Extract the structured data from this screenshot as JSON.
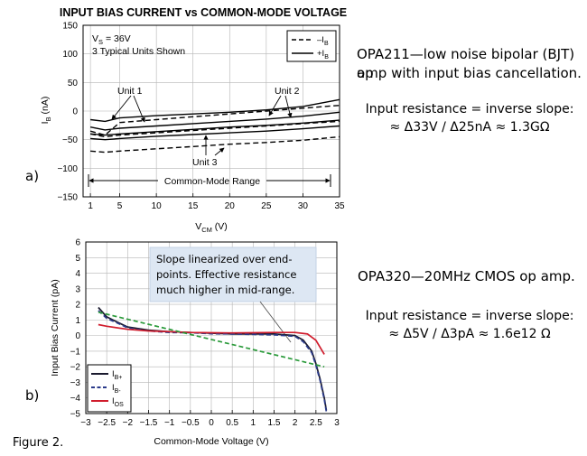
{
  "labels": {
    "a": "a)",
    "b": "b)",
    "figure": "Figure 2."
  },
  "opa211": {
    "line1": "OPA211—low noise bipolar (BJT) op",
    "line2": "amp with input bias cancellation.",
    "r1": "Input resistance = inverse slope:",
    "r2": "≈ Δ33V / Δ25nA ≈ 1.3GΩ"
  },
  "opa320": {
    "line1": "OPA320—20MHz CMOS op amp.",
    "r1": "Input resistance = inverse slope:",
    "r2": "≈ Δ5V / Δ3pA ≈ 1.6e12 Ω"
  },
  "callout": {
    "line1": "Slope linearized over end-",
    "line2": "points. Effective resistance",
    "line3": "much higher in mid-range."
  },
  "chart_data": [
    {
      "type": "line",
      "title": "INPUT BIAS CURRENT vs COMMON-MODE VOLTAGE",
      "xlabel_main": "V",
      "xlabel_sub": "CM",
      "xlabel_unit": " (V)",
      "ylabel_main": "I",
      "ylabel_sub": "B",
      "ylabel_unit": " (nA)",
      "xlim": [
        0,
        35
      ],
      "ylim": [
        -150,
        150
      ],
      "xticks": [
        1,
        5,
        10,
        15,
        20,
        25,
        30,
        35
      ],
      "yticks": [
        150,
        100,
        50,
        0,
        -50,
        -100,
        -150
      ],
      "grid": true,
      "conditions": [
        "V = 36V",
        "3 Typical Units Shown"
      ],
      "conditions_sub": "S",
      "legend": {
        "position": "top-right",
        "items": [
          {
            "main": "–I",
            "sub": "B",
            "dash": true
          },
          {
            "main": "+I",
            "sub": "B",
            "dash": false
          }
        ]
      },
      "annotations": [
        "Unit 1",
        "Unit 2",
        "Unit 3",
        "Common-Mode Range"
      ],
      "series": [
        {
          "style": "solid",
          "x": [
            1,
            3,
            5,
            10,
            15,
            20,
            25,
            30,
            35
          ],
          "y": [
            -15,
            -18,
            -12,
            -8,
            -5,
            -2,
            2,
            8,
            20
          ]
        },
        {
          "style": "solid",
          "x": [
            1,
            3,
            5,
            10,
            15,
            20,
            25,
            30,
            35
          ],
          "y": [
            -28,
            -33,
            -30,
            -26,
            -22,
            -18,
            -14,
            -9,
            -2
          ]
        },
        {
          "style": "solid",
          "x": [
            1,
            3,
            5,
            10,
            15,
            20,
            25,
            30,
            35
          ],
          "y": [
            -40,
            -42,
            -40,
            -36,
            -32,
            -28,
            -25,
            -21,
            -16
          ]
        },
        {
          "style": "solid",
          "x": [
            1,
            3,
            5,
            10,
            15,
            20,
            25,
            30,
            35
          ],
          "y": [
            -48,
            -50,
            -48,
            -44,
            -41,
            -38,
            -35,
            -31,
            -26
          ]
        },
        {
          "style": "dashed",
          "x": [
            1,
            3,
            5,
            10,
            15,
            20,
            25,
            30,
            35
          ],
          "y": [
            -35,
            -42,
            -20,
            -15,
            -10,
            -5,
            0,
            5,
            10
          ]
        },
        {
          "style": "dashed",
          "x": [
            1,
            3,
            5,
            10,
            15,
            20,
            25,
            30,
            35
          ],
          "y": [
            -40,
            -45,
            -42,
            -38,
            -34,
            -30,
            -26,
            -22,
            -18
          ]
        },
        {
          "style": "dashed",
          "x": [
            1,
            3,
            5,
            10,
            15,
            20,
            25,
            30,
            35
          ],
          "y": [
            -70,
            -72,
            -70,
            -66,
            -62,
            -58,
            -55,
            -51,
            -45
          ]
        }
      ]
    },
    {
      "type": "line",
      "title": "",
      "xlabel": "Common-Mode Voltage (V)",
      "ylabel": "Input Bias Current (pA)",
      "xlim": [
        -3,
        3
      ],
      "ylim": [
        -5,
        6
      ],
      "xticks": [
        -3,
        -2.5,
        -2,
        -1.5,
        -1,
        -0.5,
        0,
        0.5,
        1,
        1.5,
        2,
        2.5,
        3
      ],
      "xtick_labels": [
        "−3",
        "−2.5",
        "−2",
        "−1.5",
        "−1",
        "−0.5",
        "0",
        "0.5",
        "1",
        "1.5",
        "2",
        "2.5",
        "3"
      ],
      "yticks": [
        6,
        5,
        4,
        3,
        2,
        1,
        0,
        -1,
        -2,
        -3,
        -4,
        -5
      ],
      "ytick_labels": [
        "6",
        "5",
        "4",
        "3",
        "2",
        "1",
        "0",
        "−1",
        "−2",
        "−3",
        "−4",
        "−5"
      ],
      "grid": true,
      "legend": {
        "position": "bottom-left",
        "items": [
          {
            "main": "I",
            "sub": "B+"
          },
          {
            "main": "I",
            "sub": "B-"
          },
          {
            "main": "I",
            "sub": "OS"
          }
        ]
      },
      "series": [
        {
          "name_main": "I",
          "name_sub": "B+",
          "color": "#1a1a2e",
          "style": "solid",
          "x": [
            -2.7,
            -2.5,
            -2.2,
            -2.0,
            -1.5,
            -1.0,
            -0.5,
            0,
            0.5,
            1.0,
            1.5,
            2.0,
            2.2,
            2.4,
            2.5,
            2.6,
            2.7,
            2.75
          ],
          "y": [
            1.8,
            1.2,
            0.8,
            0.55,
            0.35,
            0.25,
            0.2,
            0.15,
            0.1,
            0.1,
            0.1,
            0,
            -0.3,
            -1.0,
            -1.8,
            -2.8,
            -4.0,
            -4.8
          ]
        },
        {
          "name_main": "I",
          "name_sub": "B-",
          "color": "#2a3a8a",
          "style": "dashed",
          "x": [
            -2.7,
            -2.5,
            -2.2,
            -2.0,
            -1.5,
            -1.0,
            -0.5,
            0,
            0.5,
            1.0,
            1.5,
            2.0,
            2.2,
            2.4,
            2.5,
            2.6,
            2.7,
            2.75
          ],
          "y": [
            1.6,
            1.1,
            0.75,
            0.5,
            0.3,
            0.2,
            0.18,
            0.12,
            0.1,
            0.08,
            0.05,
            -0.05,
            -0.4,
            -1.1,
            -1.9,
            -2.9,
            -4.1,
            -4.9
          ]
        },
        {
          "name_main": "I",
          "name_sub": "OS",
          "color": "#d01c2c",
          "style": "solid",
          "x": [
            -2.7,
            -2.5,
            -2.0,
            -1.5,
            -1.0,
            -0.5,
            0,
            0.5,
            1.0,
            1.5,
            2.0,
            2.3,
            2.5,
            2.7
          ],
          "y": [
            0.7,
            0.6,
            0.4,
            0.3,
            0.25,
            0.2,
            0.18,
            0.17,
            0.18,
            0.2,
            0.2,
            0.1,
            -0.3,
            -1.2
          ]
        },
        {
          "name_main": "",
          "name_sub": "",
          "color": "#2a9a3a",
          "style": "dashed",
          "x": [
            -2.7,
            2.7
          ],
          "y": [
            1.5,
            -2.0
          ]
        }
      ]
    }
  ]
}
